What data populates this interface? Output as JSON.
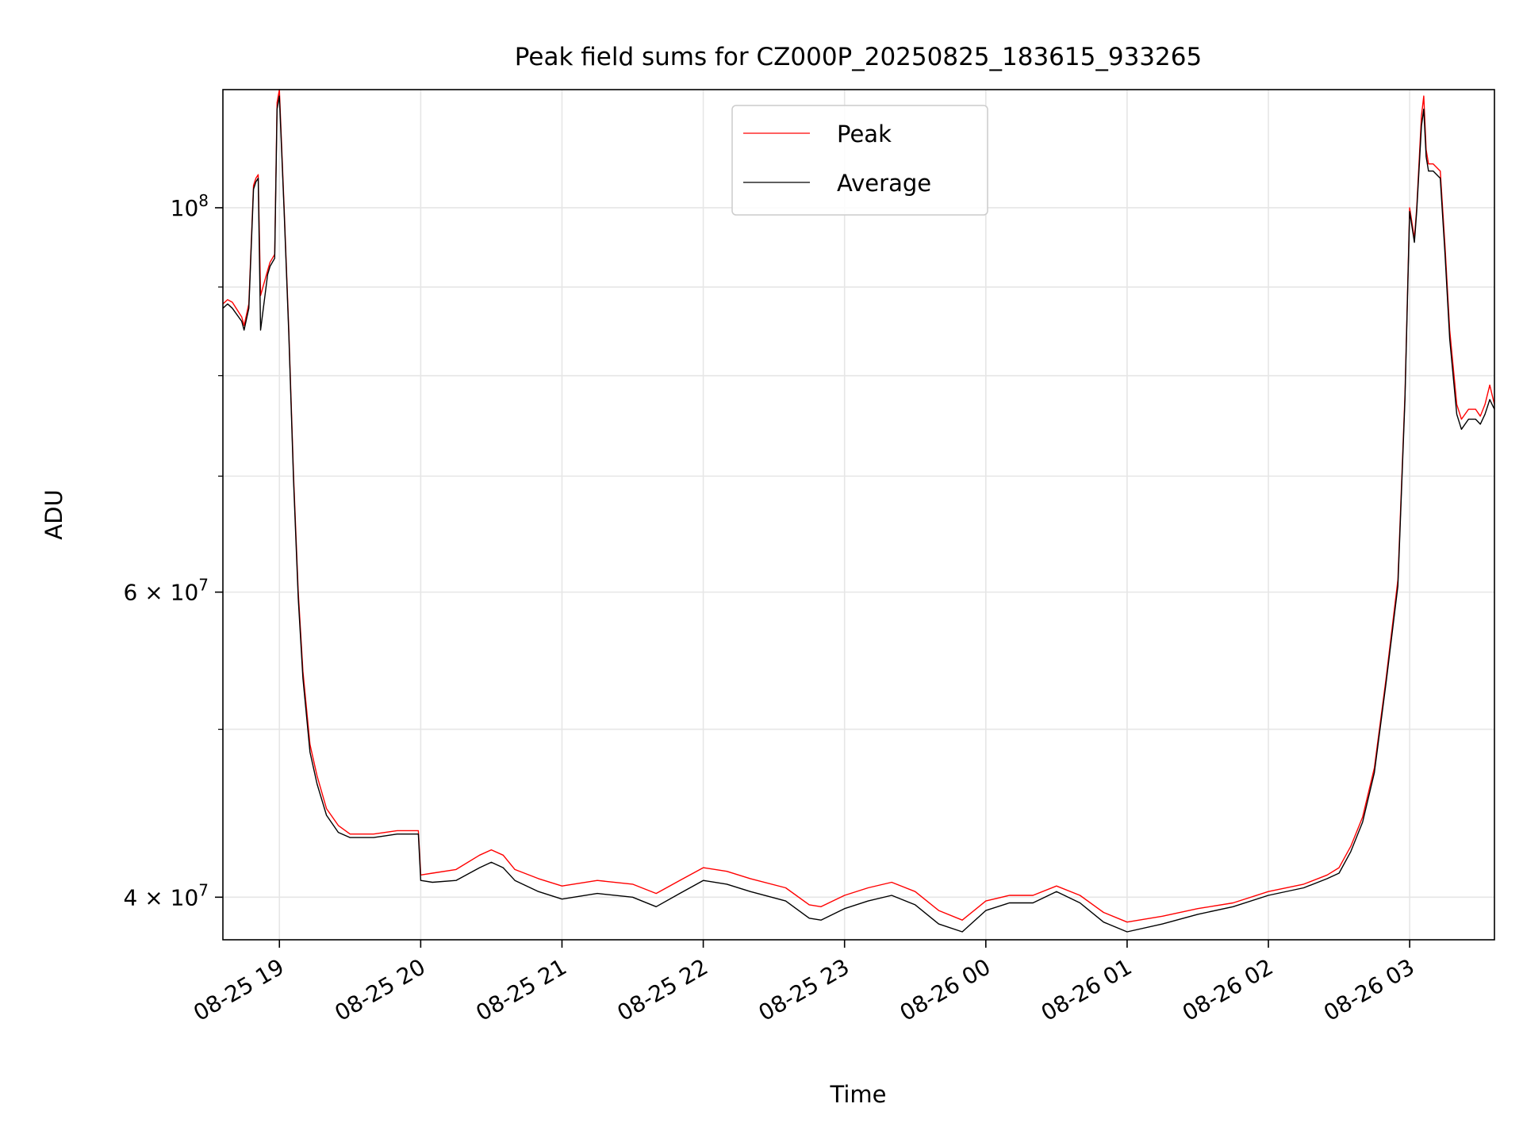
{
  "chart_data": {
    "type": "line",
    "title": "Peak field sums for CZ000P_20250825_183615_933265",
    "xlabel": "Time",
    "ylabel": "ADU",
    "x_axis": "datetime",
    "y_scale": "log",
    "xlim": [
      "2025-08-25 18:36",
      "2025-08-26 03:36"
    ],
    "ylim": [
      37800000,
      117000000
    ],
    "grid": true,
    "legend_position": "upper center",
    "x_ticks": [
      {
        "value": "2025-08-25 19:00",
        "label": "08-25 19"
      },
      {
        "value": "2025-08-25 20:00",
        "label": "08-25 20"
      },
      {
        "value": "2025-08-25 21:00",
        "label": "08-25 21"
      },
      {
        "value": "2025-08-25 22:00",
        "label": "08-25 22"
      },
      {
        "value": "2025-08-25 23:00",
        "label": "08-25 23"
      },
      {
        "value": "2025-08-26 00:00",
        "label": "08-26 00"
      },
      {
        "value": "2025-08-26 01:00",
        "label": "08-26 01"
      },
      {
        "value": "2025-08-26 02:00",
        "label": "08-26 02"
      },
      {
        "value": "2025-08-26 03:00",
        "label": "08-26 03"
      }
    ],
    "y_major_ticks": [
      {
        "value": 40000000,
        "label": "4 × 10",
        "exp": "7"
      },
      {
        "value": 60000000,
        "label": "6 × 10",
        "exp": "7"
      },
      {
        "value": 100000000,
        "label": "10",
        "exp": "8"
      }
    ],
    "y_minor_ticks": [
      50000000,
      70000000,
      80000000,
      90000000
    ],
    "series": [
      {
        "name": "Peak",
        "color": "#ff0000",
        "x": [
          "2025-08-25 18:36",
          "2025-08-25 18:38",
          "2025-08-25 18:40",
          "2025-08-25 18:44",
          "2025-08-25 18:45",
          "2025-08-25 18:47",
          "2025-08-25 18:49",
          "2025-08-25 18:50",
          "2025-08-25 18:51",
          "2025-08-25 18:52",
          "2025-08-25 18:55",
          "2025-08-25 18:56",
          "2025-08-25 18:58",
          "2025-08-25 18:59",
          "2025-08-25 19:00",
          "2025-08-25 19:02",
          "2025-08-25 19:04",
          "2025-08-25 19:06",
          "2025-08-25 19:08",
          "2025-08-25 19:10",
          "2025-08-25 19:13",
          "2025-08-25 19:16",
          "2025-08-25 19:20",
          "2025-08-25 19:25",
          "2025-08-25 19:30",
          "2025-08-25 19:35",
          "2025-08-25 19:40",
          "2025-08-25 19:45",
          "2025-08-25 19:50",
          "2025-08-25 19:59",
          "2025-08-25 20:00",
          "2025-08-25 20:05",
          "2025-08-25 20:15",
          "2025-08-25 20:25",
          "2025-08-25 20:30",
          "2025-08-25 20:35",
          "2025-08-25 20:40",
          "2025-08-25 20:50",
          "2025-08-25 21:00",
          "2025-08-25 21:15",
          "2025-08-25 21:30",
          "2025-08-25 21:40",
          "2025-08-25 21:50",
          "2025-08-25 22:00",
          "2025-08-25 22:10",
          "2025-08-25 22:20",
          "2025-08-25 22:35",
          "2025-08-25 22:45",
          "2025-08-25 22:50",
          "2025-08-25 23:00",
          "2025-08-25 23:10",
          "2025-08-25 23:20",
          "2025-08-25 23:30",
          "2025-08-25 23:40",
          "2025-08-25 23:50",
          "2025-08-26 00:00",
          "2025-08-26 00:10",
          "2025-08-26 00:20",
          "2025-08-26 00:30",
          "2025-08-26 00:40",
          "2025-08-26 00:50",
          "2025-08-26 01:00",
          "2025-08-26 01:15",
          "2025-08-26 01:30",
          "2025-08-26 01:45",
          "2025-08-26 02:00",
          "2025-08-26 02:15",
          "2025-08-26 02:25",
          "2025-08-26 02:30",
          "2025-08-26 02:35",
          "2025-08-26 02:40",
          "2025-08-26 02:45",
          "2025-08-26 02:50",
          "2025-08-26 02:55",
          "2025-08-26 02:58",
          "2025-08-26 03:00",
          "2025-08-26 03:02",
          "2025-08-26 03:03",
          "2025-08-26 03:05",
          "2025-08-26 03:06",
          "2025-08-26 03:07",
          "2025-08-26 03:08",
          "2025-08-26 03:10",
          "2025-08-26 03:13",
          "2025-08-26 03:15",
          "2025-08-26 03:17",
          "2025-08-26 03:20",
          "2025-08-26 03:22",
          "2025-08-26 03:25",
          "2025-08-26 03:28",
          "2025-08-26 03:30",
          "2025-08-26 03:32",
          "2025-08-26 03:34",
          "2025-08-26 03:35",
          "2025-08-26 03:36"
        ],
        "y": [
          88000000,
          88500000,
          88200000,
          86500000,
          85500000,
          88000000,
          103000000,
          104000000,
          104500000,
          89000000,
          92000000,
          93000000,
          94000000,
          115000000,
          117000000,
          100000000,
          85000000,
          70000000,
          60000000,
          54000000,
          49000000,
          47000000,
          45000000,
          44000000,
          43500000,
          43500000,
          43500000,
          43600000,
          43700000,
          43700000,
          41200000,
          41300000,
          41500000,
          42300000,
          42600000,
          42300000,
          41500000,
          41000000,
          40600000,
          40900000,
          40700000,
          40200000,
          40900000,
          41600000,
          41400000,
          41000000,
          40500000,
          39600000,
          39500000,
          40100000,
          40500000,
          40800000,
          40300000,
          39300000,
          38800000,
          39800000,
          40100000,
          40100000,
          40600000,
          40100000,
          39200000,
          38700000,
          39000000,
          39400000,
          39700000,
          40300000,
          40700000,
          41200000,
          41600000,
          42800000,
          44500000,
          47500000,
          53500000,
          61000000,
          78000000,
          100000000,
          96000000,
          100000000,
          113000000,
          116000000,
          108000000,
          106000000,
          106000000,
          105000000,
          95000000,
          85000000,
          77000000,
          75500000,
          76500000,
          76500000,
          75800000,
          77000000,
          79000000,
          78000000,
          77000000
        ]
      },
      {
        "name": "Average",
        "color": "#000000",
        "x": [
          "2025-08-25 18:36",
          "2025-08-25 18:38",
          "2025-08-25 18:40",
          "2025-08-25 18:44",
          "2025-08-25 18:45",
          "2025-08-25 18:47",
          "2025-08-25 18:49",
          "2025-08-25 18:50",
          "2025-08-25 18:51",
          "2025-08-25 18:52",
          "2025-08-25 18:55",
          "2025-08-25 18:56",
          "2025-08-25 18:58",
          "2025-08-25 18:59",
          "2025-08-25 19:00",
          "2025-08-25 19:02",
          "2025-08-25 19:04",
          "2025-08-25 19:06",
          "2025-08-25 19:08",
          "2025-08-25 19:10",
          "2025-08-25 19:13",
          "2025-08-25 19:16",
          "2025-08-25 19:20",
          "2025-08-25 19:25",
          "2025-08-25 19:30",
          "2025-08-25 19:35",
          "2025-08-25 19:40",
          "2025-08-25 19:45",
          "2025-08-25 19:50",
          "2025-08-25 19:59",
          "2025-08-25 20:00",
          "2025-08-25 20:05",
          "2025-08-25 20:15",
          "2025-08-25 20:25",
          "2025-08-25 20:30",
          "2025-08-25 20:35",
          "2025-08-25 20:40",
          "2025-08-25 20:50",
          "2025-08-25 21:00",
          "2025-08-25 21:15",
          "2025-08-25 21:30",
          "2025-08-25 21:40",
          "2025-08-25 21:50",
          "2025-08-25 22:00",
          "2025-08-25 22:10",
          "2025-08-25 22:20",
          "2025-08-25 22:35",
          "2025-08-25 22:45",
          "2025-08-25 22:50",
          "2025-08-25 23:00",
          "2025-08-25 23:10",
          "2025-08-25 23:20",
          "2025-08-25 23:30",
          "2025-08-25 23:40",
          "2025-08-25 23:50",
          "2025-08-26 00:00",
          "2025-08-26 00:10",
          "2025-08-26 00:20",
          "2025-08-26 00:30",
          "2025-08-26 00:40",
          "2025-08-26 00:50",
          "2025-08-26 01:00",
          "2025-08-26 01:15",
          "2025-08-26 01:30",
          "2025-08-26 01:45",
          "2025-08-26 02:00",
          "2025-08-26 02:15",
          "2025-08-26 02:25",
          "2025-08-26 02:30",
          "2025-08-26 02:35",
          "2025-08-26 02:40",
          "2025-08-26 02:45",
          "2025-08-26 02:50",
          "2025-08-26 02:55",
          "2025-08-26 02:58",
          "2025-08-26 03:00",
          "2025-08-26 03:02",
          "2025-08-26 03:03",
          "2025-08-26 03:05",
          "2025-08-26 03:06",
          "2025-08-26 03:07",
          "2025-08-26 03:08",
          "2025-08-26 03:10",
          "2025-08-26 03:13",
          "2025-08-26 03:15",
          "2025-08-26 03:17",
          "2025-08-26 03:20",
          "2025-08-26 03:22",
          "2025-08-26 03:25",
          "2025-08-26 03:28",
          "2025-08-26 03:30",
          "2025-08-26 03:32",
          "2025-08-26 03:34",
          "2025-08-26 03:35",
          "2025-08-26 03:36"
        ],
        "y": [
          87500000,
          88000000,
          87500000,
          86000000,
          85000000,
          87500000,
          102500000,
          103500000,
          104000000,
          85000000,
          91500000,
          92500000,
          93500000,
          114000000,
          116000000,
          99500000,
          84500000,
          69500000,
          59500000,
          53500000,
          48500000,
          46500000,
          44600000,
          43600000,
          43300000,
          43300000,
          43300000,
          43400000,
          43500000,
          43500000,
          40900000,
          40800000,
          40900000,
          41600000,
          41900000,
          41600000,
          40900000,
          40300000,
          39900000,
          40200000,
          40000000,
          39500000,
          40200000,
          40900000,
          40700000,
          40300000,
          39800000,
          38900000,
          38800000,
          39400000,
          39800000,
          40100000,
          39600000,
          38600000,
          38200000,
          39300000,
          39700000,
          39700000,
          40300000,
          39700000,
          38700000,
          38200000,
          38600000,
          39100000,
          39500000,
          40100000,
          40500000,
          41000000,
          41300000,
          42500000,
          44200000,
          47200000,
          53200000,
          60500000,
          77500000,
          99500000,
          95500000,
          99500000,
          111500000,
          114000000,
          107000000,
          105000000,
          105000000,
          104000000,
          94000000,
          84000000,
          76000000,
          74500000,
          75500000,
          75500000,
          75000000,
          76000000,
          77500000,
          77000000,
          76500000
        ]
      }
    ]
  }
}
